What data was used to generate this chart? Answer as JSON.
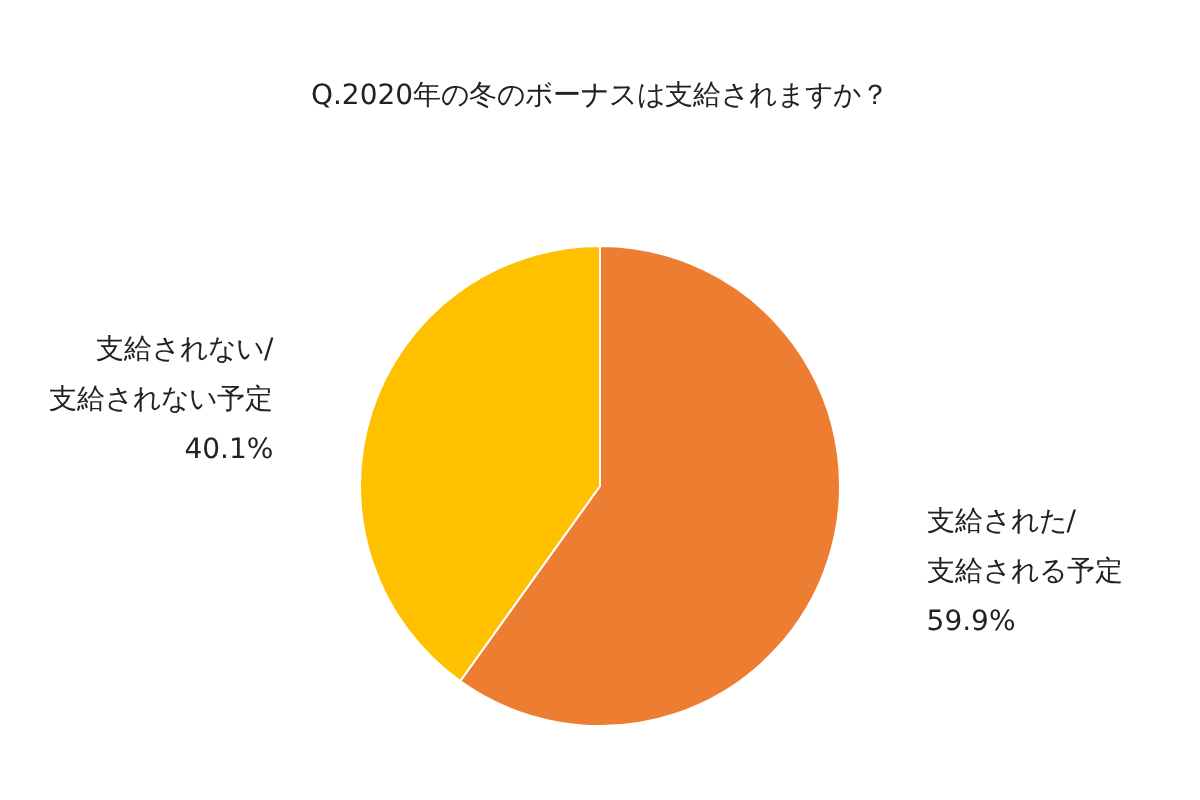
{
  "chart_data": {
    "type": "pie",
    "title": "Q.2020年の冬のボーナスは支給されますか？",
    "categories": [
      "支給された/支給される予定",
      "支給されない/支給されない予定"
    ],
    "values": [
      59.9,
      40.1
    ],
    "colors": [
      "#ed7d31",
      "#ffc000"
    ],
    "value_labels": [
      "59.9%",
      "40.1%"
    ],
    "legend": false
  }
}
